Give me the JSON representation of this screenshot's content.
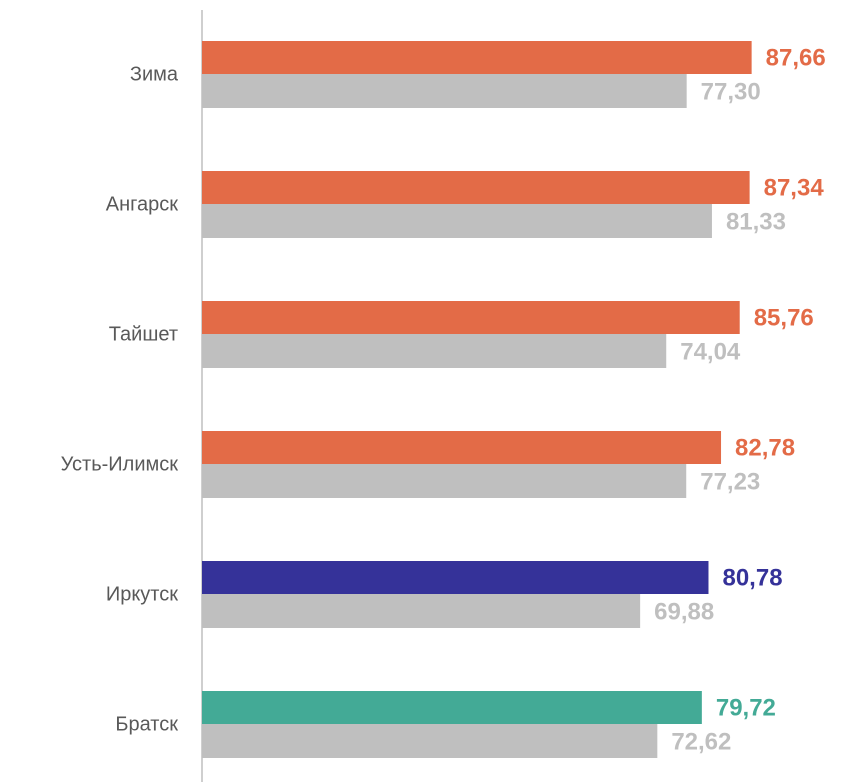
{
  "chart_data": {
    "type": "bar",
    "orientation": "horizontal",
    "categories": [
      "Зима",
      "Ангарск",
      "Тайшет",
      "Усть-Илимск",
      "Иркутск",
      "Братск"
    ],
    "series": [
      {
        "colors": [
          "#e36b47",
          "#e36b47",
          "#e36b47",
          "#e36b47",
          "#353299",
          "#43aa96"
        ],
        "values": [
          87.66,
          87.34,
          85.76,
          82.78,
          80.78,
          79.72
        ],
        "value_labels": [
          "87,66",
          "87,34",
          "85,76",
          "82,78",
          "80,78",
          "79,72"
        ]
      },
      {
        "color": "#bfbfbf",
        "values": [
          77.3,
          81.33,
          74.04,
          77.23,
          69.88,
          72.62
        ],
        "value_labels": [
          "77,30",
          "81,33",
          "74,04",
          "77,23",
          "69,88",
          "72,62"
        ]
      }
    ],
    "xlim": [
      0,
      100
    ]
  }
}
